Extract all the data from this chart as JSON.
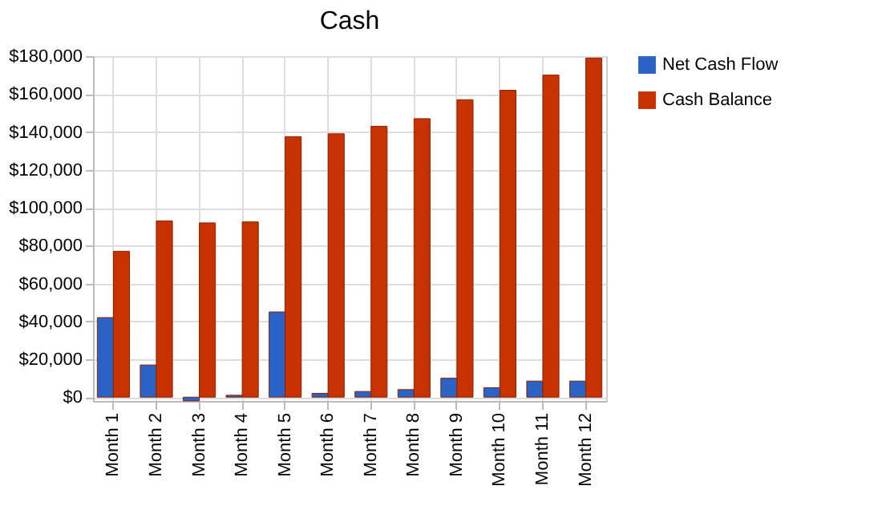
{
  "chart_data": {
    "type": "bar",
    "title": "Cash",
    "categories": [
      "Month 1",
      "Month 2",
      "Month 3",
      "Month 4",
      "Month 5",
      "Month 6",
      "Month 7",
      "Month 8",
      "Month 9",
      "Month 10",
      "Month 11",
      "Month 12"
    ],
    "series": [
      {
        "name": "Net Cash Flow",
        "color": "#2a62c6",
        "values": [
          42000,
          17000,
          -2000,
          1000,
          45000,
          2000,
          3000,
          4000,
          10000,
          5000,
          8500,
          8500
        ]
      },
      {
        "name": "Cash Balance",
        "color": "#c83200",
        "values": [
          77000,
          93000,
          92000,
          92500,
          137500,
          139000,
          143000,
          147000,
          157000,
          162000,
          170000,
          179000
        ]
      }
    ],
    "ylim": [
      -2000,
      180000
    ],
    "yticks": [
      {
        "value": 0,
        "label": "$0"
      },
      {
        "value": 20000,
        "label": "$20,000"
      },
      {
        "value": 40000,
        "label": "$40,000"
      },
      {
        "value": 60000,
        "label": "$60,000"
      },
      {
        "value": 80000,
        "label": "$80,000"
      },
      {
        "value": 100000,
        "label": "$100,000"
      },
      {
        "value": 120000,
        "label": "$120,000"
      },
      {
        "value": 140000,
        "label": "$140,000"
      },
      {
        "value": 160000,
        "label": "$160,000"
      },
      {
        "value": 180000,
        "label": "$180,000"
      }
    ],
    "grid": true,
    "legend": "right"
  }
}
